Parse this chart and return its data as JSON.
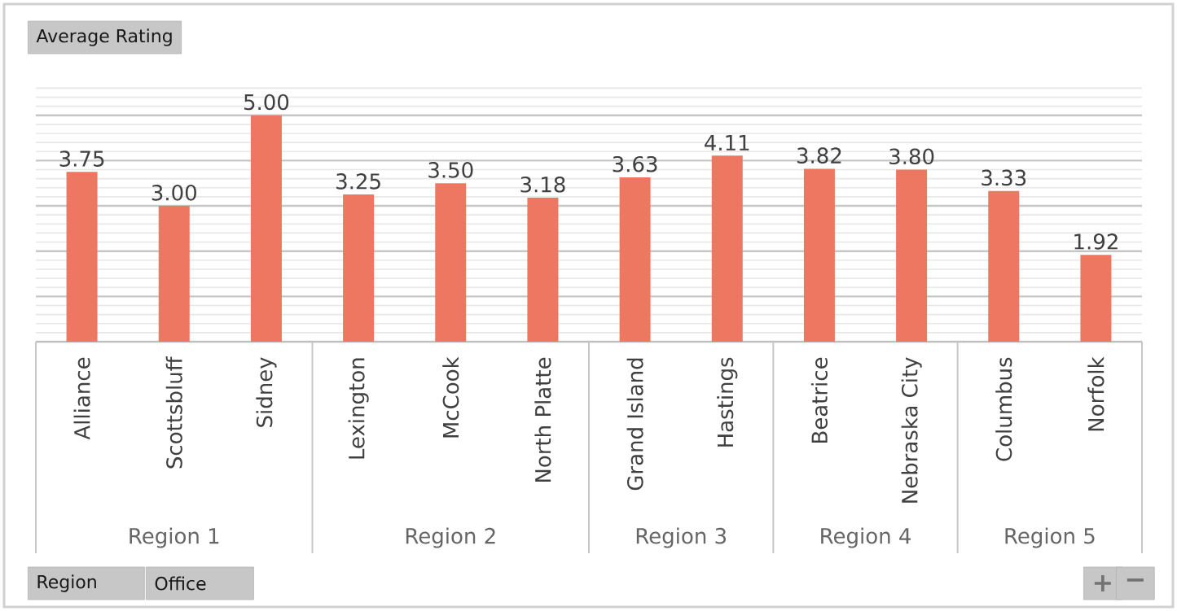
{
  "chart_data": {
    "type": "bar",
    "title": "Average Rating",
    "categories": [
      "Alliance",
      "Scottsbluff",
      "Sidney",
      "Lexington",
      "McCook",
      "North Platte",
      "Grand Island",
      "Hastings",
      "Beatrice",
      "Nebraska City",
      "Columbus",
      "Norfolk"
    ],
    "values": [
      3.75,
      3.0,
      5.0,
      3.25,
      3.5,
      3.18,
      3.63,
      4.11,
      3.82,
      3.8,
      3.33,
      1.92
    ],
    "value_labels": [
      "3.75",
      "3.00",
      "5.00",
      "3.25",
      "3.50",
      "3.18",
      "3.63",
      "4.11",
      "3.82",
      "3.80",
      "3.33",
      "1.92"
    ],
    "color": "#ee7762",
    "grid": "y",
    "annotations": [
      "Region 1",
      "Region 2",
      "Region 3",
      "Region 4",
      "Region 5",
      "Region",
      "Office",
      "+",
      "−"
    ]
  }
}
